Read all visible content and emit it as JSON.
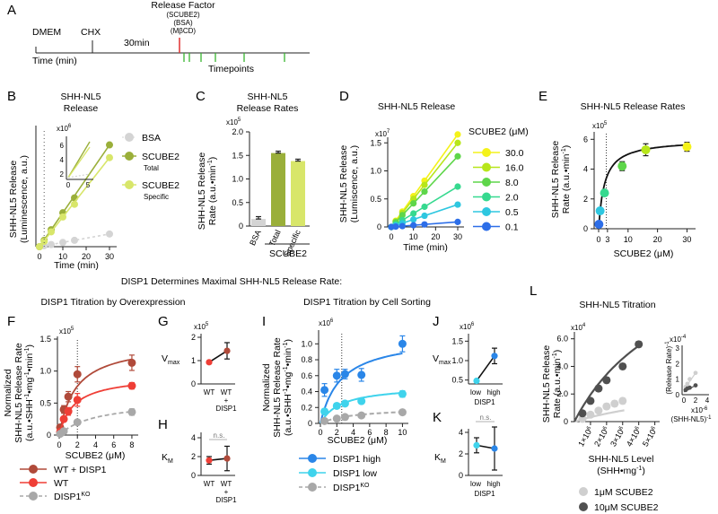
{
  "colors": {
    "bsa": "#d4d4d4",
    "scube_total": "#9aaf3a",
    "scube_specific": "#d8e66a",
    "red": "#e03131",
    "green_tick": "#38b52f",
    "wt_disp1": "#b04a3a",
    "wt": "#ef3e36",
    "ko": "#a8a8a8",
    "disp_high": "#2a86e8",
    "disp_low": "#3fd3ec",
    "l_1um": "#cfcfcf",
    "l_10um": "#505050",
    "series_d": [
      "#f4f21a",
      "#b7e61a",
      "#5ed64a",
      "#36d98f",
      "#2ec7e0",
      "#2d6ee8"
    ]
  },
  "panelA": {
    "letter": "A",
    "release_factor": "Release Factor",
    "factors": [
      "(SCUBE2)",
      "(BSA)",
      "(MβCD)"
    ],
    "dmem": "DMEM",
    "chx": "CHX",
    "duration": "30min",
    "time_label": "Time (min)",
    "timepoints": "Timepoints"
  },
  "panelB": {
    "letter": "B",
    "title": [
      "SHH-NL5",
      "Release"
    ],
    "ylabel": [
      "SHH-NL5 Release",
      "(Luminescence, a.u.)"
    ],
    "xlabel": "Time (min)",
    "xticks": [
      "0",
      "10",
      "20",
      "30"
    ],
    "inset_exp": "x10",
    "inset_sup": "6",
    "inset_yticks": [
      "6",
      "4",
      "2"
    ],
    "inset_xticks": [
      "0",
      "5"
    ],
    "legend": [
      "BSA",
      "SCUBE2",
      "Total",
      "SCUBE2",
      "Specific"
    ]
  },
  "panelC": {
    "letter": "C",
    "title": [
      "SHH-NL5",
      "Release Rates"
    ],
    "exp": "x10",
    "exp_sup": "5",
    "ylabel": [
      "SHH-NL5 Release",
      "Rate (a.u.•min"
    ],
    "ylabel_sup": "-1",
    "yticks": [
      "2.0",
      "1.5",
      "1.0",
      "0.5",
      "0"
    ],
    "group_label": "SCUBE2"
  },
  "panelD": {
    "letter": "D",
    "title": "SHH-NL5 Release",
    "exp": "x10",
    "exp_sup": "7",
    "ylabel": [
      "SHH-NL5 Release",
      "(Lumiscence, a.u.)"
    ],
    "xlabel": "Time (min)",
    "yticks": [
      "1.5",
      "1.0",
      "0.5",
      "0"
    ],
    "xticks": [
      "0",
      "10",
      "20",
      "30"
    ],
    "legend_title": "SCUBE2 (μM)"
  },
  "panelE": {
    "letter": "E",
    "title": "SHH-NL5 Release Rates",
    "exp": "x10",
    "exp_sup": "5",
    "ylabel": [
      "SHH-NL5 Release",
      "Rate (a.u.•min"
    ],
    "ylabel_sup": "-1",
    "xlabel": "SCUBE2 (μM)",
    "yticks": [
      "6",
      "4",
      "2",
      "0"
    ],
    "xticks": [
      "0",
      "3",
      "10",
      "20",
      "30"
    ]
  },
  "mainTitle": "DISP1 Determines Maximal SHH-NL5 Release Rate:",
  "sub1": "DISP1 Titration by Overexpression",
  "sub2": "DISP1 Titration by Cell Sorting",
  "panelF": {
    "letter": "F",
    "exp": "x10",
    "exp_sup": "5",
    "ylabel": [
      "Normalized",
      "SHH-NL5 Release Rate",
      "(a.u.•SHH"
    ],
    "ylabel_tail": "•mg",
    "ylabel_tail2": "•min",
    "sup_neg1": "-1",
    "xlabel": "SCUBE2 (μM)",
    "yticks": [
      "1.5",
      "1.0",
      "0.5",
      "0"
    ],
    "xticks": [
      "0",
      "2",
      "4",
      "6",
      "8"
    ],
    "legend": [
      "WT + DISP1",
      "WT",
      "DISP1"
    ],
    "legend_sup": "KO"
  },
  "panelG": {
    "letter": "G",
    "exp": "x10",
    "exp_sup": "5",
    "ylabel": "V",
    "ylabel_sub": "max",
    "yticks": [
      "2",
      "1",
      "0"
    ],
    "xcats": [
      "WT",
      "WT"
    ],
    "xextra": [
      "+",
      "DISP1"
    ]
  },
  "panelH": {
    "letter": "H",
    "ylabel": "K",
    "ylabel_sub": "M",
    "yticks": [
      "4",
      "2",
      "0"
    ],
    "xcats": [
      "WT",
      "WT"
    ],
    "xextra": [
      "+",
      "DISP1"
    ],
    "ns": "n.s."
  },
  "panelI": {
    "letter": "I",
    "exp": "x10",
    "exp_sup": "6",
    "ylabel": [
      "Normalized",
      "SHH-NL5 Release Rate",
      "(a.u.•SHH"
    ],
    "ylabel_tail": "•mg",
    "ylabel_tail2": "•min",
    "sup_neg1": "-1",
    "xlabel": "SCUBE2 (μM)",
    "yticks": [
      "1.0",
      "0.8",
      "0.6",
      "0.4",
      "0.2",
      "0"
    ],
    "xticks": [
      "0",
      "2",
      "4",
      "6",
      "8",
      "10"
    ],
    "legend": [
      "DISP1 high",
      "DISP1 low",
      "DISP1"
    ],
    "legend_sup": "KO"
  },
  "panelJ": {
    "letter": "J",
    "exp": "x10",
    "exp_sup": "6",
    "ylabel": "V",
    "ylabel_sub": "max",
    "yticks": [
      "1.5",
      "1.0",
      "0.5"
    ],
    "xcats": [
      "low",
      "high"
    ],
    "xgroup": "DISP1"
  },
  "panelK": {
    "letter": "K",
    "ylabel": "K",
    "ylabel_sub": "M",
    "yticks": [
      "4",
      "2",
      "0"
    ],
    "xcats": [
      "low",
      "high"
    ],
    "xgroup": "DISP1",
    "ns": "n.s."
  },
  "panelL": {
    "letter": "L",
    "title": "SHH-NL5 Titration",
    "exp": "x10",
    "exp_sup": "4",
    "ylabel": [
      "SHH-NL5 Release",
      "Rate (a.u.•min"
    ],
    "ylabel_sup": "-1",
    "xlabel": [
      "SHH-NL5 Level",
      "(SHH•mg"
    ],
    "xlabel_sup": "-1",
    "yticks": [
      "6.0",
      "4.0",
      "2.0",
      "0"
    ],
    "xticks": [
      "1×10",
      "2×10",
      "3×10",
      "4×10",
      "5×10"
    ],
    "xtick_sup": "6",
    "inset_exp": "x10",
    "inset_exp_sup": "-4",
    "inset_ylabel": "(Release Rate)",
    "inset_yticks": [
      "3",
      "2",
      "1",
      "0"
    ],
    "inset_xticks": [
      "0",
      "2",
      "4"
    ],
    "inset_xexp": "x10",
    "inset_xexp_sup": "-6",
    "inset_xlabel": "(SHH-NL5)",
    "legend": [
      "1μM SCUBE2",
      "10μM SCUBE2"
    ]
  },
  "chart_data": [
    {
      "panel": "B",
      "type": "line",
      "title": "SHH-NL5 Release",
      "xlabel": "Time (min)",
      "ylabel": "SHH-NL5 Release (Luminescence, a.u.)",
      "xlim": [
        0,
        30
      ],
      "series": [
        {
          "name": "BSA",
          "x": [
            0,
            2,
            5,
            10,
            15,
            30
          ],
          "y": [
            0.0,
            0.05,
            0.1,
            0.2,
            0.3,
            0.6
          ]
        },
        {
          "name": "SCUBE2 Total",
          "x": [
            0,
            2,
            5,
            10,
            15,
            30
          ],
          "y": [
            0.0,
            0.3,
            0.8,
            1.6,
            2.3,
            4.8
          ]
        },
        {
          "name": "SCUBE2 Specific",
          "x": [
            0,
            2,
            5,
            10,
            15,
            30
          ],
          "y": [
            0.0,
            0.25,
            0.7,
            1.4,
            2.0,
            4.2
          ]
        }
      ]
    },
    {
      "panel": "C",
      "type": "bar",
      "title": "SHH-NL5 Release Rates",
      "ylabel": "SHH-NL5 Release Rate (a.u.•min-1) x10^5",
      "ylim": [
        0,
        2.0
      ],
      "categories": [
        "BSA",
        "Total",
        "Specific"
      ],
      "values": [
        0.15,
        1.55,
        1.38
      ],
      "errors": [
        0.05,
        0.04,
        0.04
      ]
    },
    {
      "panel": "D",
      "type": "line",
      "title": "SHH-NL5 Release",
      "xlabel": "Time (min)",
      "ylabel": "SHH-NL5 Release (Lumiscence, a.u.) x10^7",
      "xlim": [
        0,
        30
      ],
      "ylim": [
        0,
        1.6
      ],
      "x": [
        0,
        2,
        5,
        10,
        15,
        30
      ],
      "series": [
        {
          "name": "30.0",
          "slope": 0.055
        },
        {
          "name": "16.0",
          "slope": 0.05
        },
        {
          "name": "8.0",
          "slope": 0.042
        },
        {
          "name": "2.0",
          "slope": 0.024
        },
        {
          "name": "0.5",
          "slope": 0.0133
        },
        {
          "name": "0.1",
          "slope": 0.003
        }
      ]
    },
    {
      "panel": "E",
      "type": "scatter",
      "title": "SHH-NL5 Release Rates",
      "xlabel": "SCUBE2 (μM)",
      "ylabel": "Release Rate (a.u.•min-1) x10^5",
      "xlim": [
        0,
        32
      ],
      "ylim": [
        0,
        6.5
      ],
      "x": [
        0.1,
        0.5,
        2,
        8,
        16,
        30
      ],
      "y": [
        0.3,
        1.2,
        2.4,
        4.2,
        5.3,
        5.5
      ],
      "errors": [
        0.1,
        0.15,
        0.2,
        0.3,
        0.4,
        0.3
      ],
      "fit": {
        "vmax": 6.0,
        "km": 2.0
      }
    },
    {
      "panel": "F",
      "type": "scatter",
      "xlabel": "SCUBE2 (μM)",
      "ylabel": "Normalized SHH-NL5 Release Rate x10^5",
      "xlim": [
        0,
        8.5
      ],
      "ylim": [
        0,
        1.5
      ],
      "series": [
        {
          "name": "WT + DISP1",
          "x": [
            0.1,
            0.5,
            1,
            2,
            8
          ],
          "y": [
            0.12,
            0.4,
            0.6,
            0.95,
            1.13
          ],
          "errors": [
            0.03,
            0.06,
            0.08,
            0.12,
            0.12
          ],
          "fit": {
            "vmax": 1.45,
            "km": 1.8
          }
        },
        {
          "name": "WT",
          "x": [
            0.1,
            0.5,
            1,
            2,
            8
          ],
          "y": [
            0.05,
            0.25,
            0.37,
            0.55,
            0.77
          ],
          "errors": [
            0.02,
            0.04,
            0.06,
            0.1,
            0.05
          ],
          "fit": {
            "vmax": 0.93,
            "km": 1.6
          }
        },
        {
          "name": "DISP1KO",
          "x": [
            0.1,
            0.5,
            2,
            8
          ],
          "y": [
            0.02,
            0.06,
            0.2,
            0.36
          ],
          "errors": [
            0.01,
            0.02,
            0.03,
            0.05
          ],
          "fit": {
            "vmax": 0.55,
            "km": 4.0
          }
        }
      ]
    },
    {
      "panel": "G",
      "type": "scatter",
      "ylabel": "Vmax x10^5",
      "categories": [
        "WT",
        "WT + DISP1"
      ],
      "values": [
        0.93,
        1.42
      ],
      "errors": [
        0.03,
        0.35
      ],
      "ylim": [
        0,
        2
      ]
    },
    {
      "panel": "H",
      "type": "scatter",
      "ylabel": "KM",
      "categories": [
        "WT",
        "WT + DISP1"
      ],
      "values": [
        1.6,
        1.8
      ],
      "errors": [
        0.4,
        1.3
      ],
      "ylim": [
        0,
        4
      ]
    },
    {
      "panel": "I",
      "type": "scatter",
      "xlabel": "SCUBE2 (μM)",
      "ylabel": "Normalized SHH-NL5 Release Rate x10^6",
      "xlim": [
        0,
        10.5
      ],
      "ylim": [
        0,
        1.15
      ],
      "series": [
        {
          "name": "DISP1 high",
          "x": [
            0.5,
            2,
            3,
            5,
            10
          ],
          "y": [
            0.42,
            0.6,
            0.62,
            0.61,
            1.0
          ],
          "errors": [
            0.08,
            0.08,
            0.06,
            0.08,
            0.1
          ],
          "fit": {
            "vmax": 1.1,
            "km": 2.5
          }
        },
        {
          "name": "DISP1 low",
          "x": [
            0.5,
            2,
            3,
            5,
            10
          ],
          "y": [
            0.15,
            0.22,
            0.25,
            0.28,
            0.37
          ],
          "errors": [
            0.03,
            0.03,
            0.03,
            0.03,
            0.04
          ],
          "fit": {
            "vmax": 0.48,
            "km": 2.5
          }
        },
        {
          "name": "DISP1KO",
          "x": [
            0.5,
            2,
            3,
            5,
            10
          ],
          "y": [
            0.03,
            0.06,
            0.08,
            0.1,
            0.14
          ],
          "errors": [
            0.01,
            0.01,
            0.01,
            0.01,
            0.02
          ],
          "fit": {
            "vmax": 0.2,
            "km": 4.0
          }
        }
      ]
    },
    {
      "panel": "J",
      "type": "scatter",
      "ylabel": "Vmax x10^6",
      "xlabel": "DISP1",
      "categories": [
        "low",
        "high"
      ],
      "values": [
        0.48,
        1.12
      ],
      "errors": [
        0.02,
        0.2
      ],
      "ylim": [
        0.4,
        1.6
      ]
    },
    {
      "panel": "K",
      "type": "scatter",
      "ylabel": "KM",
      "xlabel": "DISP1",
      "categories": [
        "low",
        "high"
      ],
      "values": [
        2.8,
        2.5
      ],
      "errors": [
        0.7,
        2.0
      ],
      "ylim": [
        0,
        4
      ]
    },
    {
      "panel": "L",
      "type": "scatter",
      "title": "SHH-NL5 Titration",
      "xlabel": "SHH-NL5 Level (SHH•mg-1)",
      "ylabel": "SHH-NL5 Release Rate (a.u.•min-1) x10^4",
      "xlim": [
        0,
        5.3
      ],
      "ylim": [
        0,
        6.5
      ],
      "series": [
        {
          "name": "1μM SCUBE2",
          "x": [
            0.5,
            1.0,
            1.5,
            2.0,
            2.5,
            3.0
          ],
          "y": [
            0.2,
            0.5,
            0.8,
            1.1,
            1.3,
            1.5
          ],
          "errors": [
            0.05,
            0.1,
            0.15,
            0.2,
            0.2,
            0.2
          ]
        },
        {
          "name": "10μM SCUBE2",
          "x": [
            0.5,
            1.0,
            1.5,
            2.0,
            3.0,
            4.0
          ],
          "y": [
            0.6,
            1.5,
            2.4,
            3.0,
            4.0,
            5.6
          ],
          "errors": [
            0.05,
            0.15,
            0.2,
            0.2,
            0.2,
            0.2
          ]
        }
      ],
      "inset": {
        "xlabel": "(SHH-NL5)-1 x10^-6",
        "ylabel": "(Release Rate)-1 x10^-4",
        "series": [
          {
            "name": "1μM SCUBE2",
            "x": [
              0.3,
              0.6,
              1.0,
              2.0
            ],
            "y": [
              0.5,
              0.7,
              1.0,
              1.4
            ]
          },
          {
            "name": "10μM SCUBE2",
            "x": [
              0.3,
              0.6,
              1.0,
              2.0
            ],
            "y": [
              0.3,
              0.4,
              0.45,
              0.6
            ]
          }
        ]
      }
    }
  ]
}
